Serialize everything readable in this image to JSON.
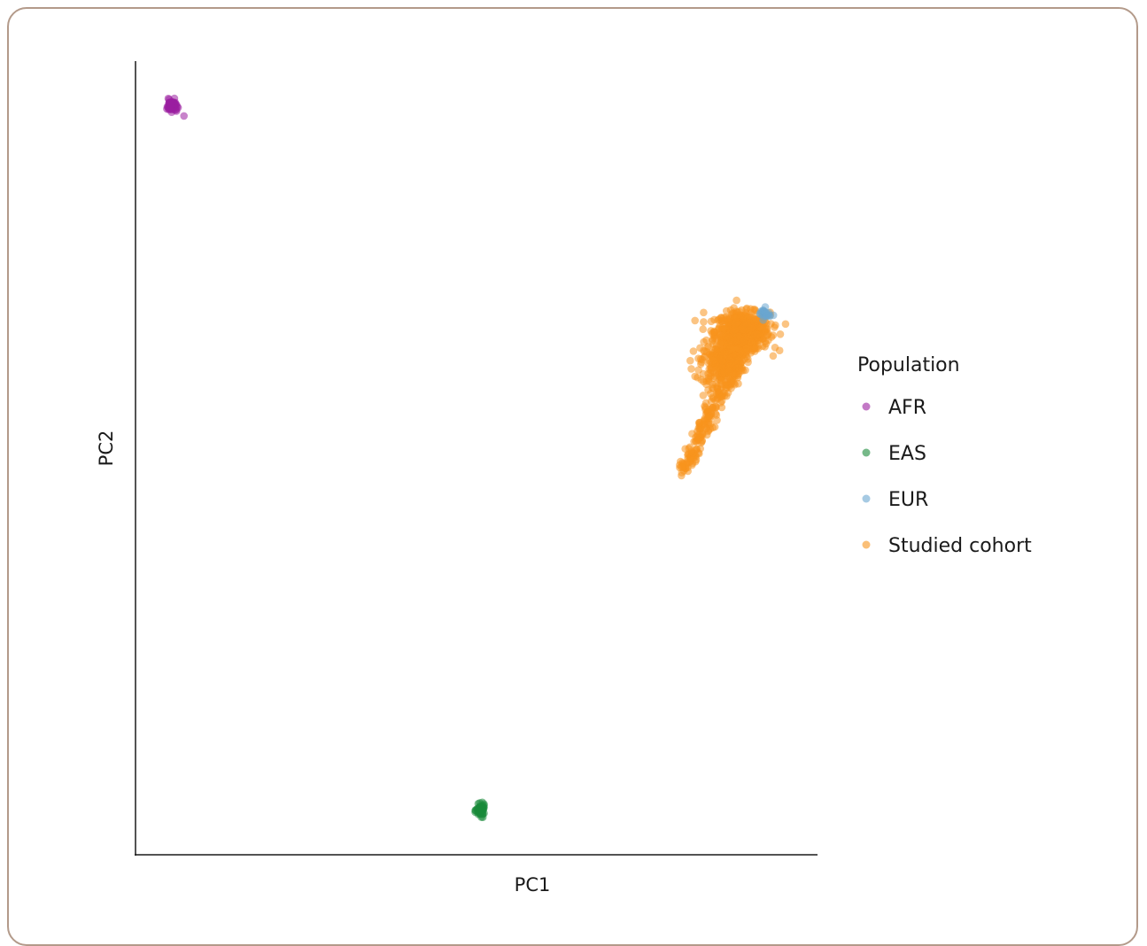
{
  "chart_data": {
    "type": "scatter",
    "title": "",
    "xlabel": "PC1",
    "ylabel": "PC2",
    "xlim": [
      0,
      100
    ],
    "ylim": [
      0,
      100
    ],
    "grid": false,
    "legend": {
      "title": "Population",
      "placement": "right"
    },
    "series": [
      {
        "name": "AFR",
        "color": "#9b1fa0",
        "clusters": [
          {
            "cx": 5.3,
            "cy": 94.5,
            "sx": 0.35,
            "sy": 0.35,
            "count": 70
          }
        ],
        "extra_points": [
          [
            7.1,
            93.2
          ],
          [
            4.8,
            95.4
          ],
          [
            6.0,
            93.8
          ]
        ]
      },
      {
        "name": "EAS",
        "color": "#1a8a3a",
        "clusters": [
          {
            "cx": 50.6,
            "cy": 5.6,
            "sx": 0.3,
            "sy": 0.35,
            "count": 70
          }
        ],
        "extra_points": []
      },
      {
        "name": "EUR",
        "color": "#6aa6d0",
        "clusters": [
          {
            "cx": 92.2,
            "cy": 68.2,
            "sx": 0.45,
            "sy": 0.35,
            "count": 25
          }
        ],
        "extra_points": []
      },
      {
        "name": "Studied cohort",
        "color": "#f7941d",
        "clusters": [
          {
            "cx": 89.0,
            "cy": 66.0,
            "sx": 2.0,
            "sy": 1.2,
            "count": 600
          },
          {
            "cx": 86.0,
            "cy": 62.0,
            "sx": 1.6,
            "sy": 1.4,
            "count": 250
          }
        ],
        "streak": {
          "from": [
            89.0,
            65.0
          ],
          "to": [
            80.5,
            48.5
          ],
          "width": 0.8,
          "count": 260
        },
        "extra_points": [
          [
            83.3,
            68.4
          ],
          [
            81.5,
            61.3
          ],
          [
            82.4,
            60.2
          ],
          [
            80.4,
            49.3
          ],
          [
            80.1,
            48.2
          ]
        ]
      }
    ]
  }
}
